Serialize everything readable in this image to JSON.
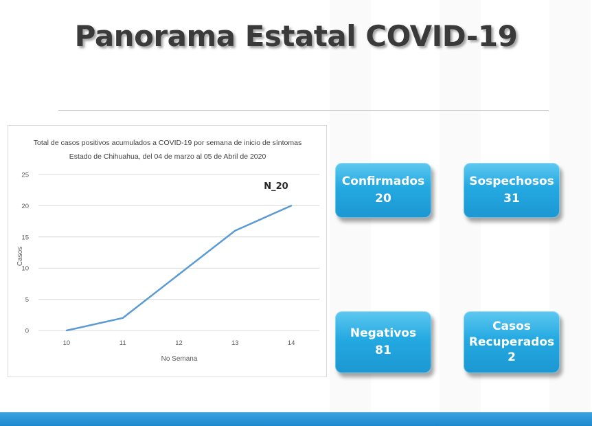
{
  "page": {
    "title": "Panorama Estatal COVID-19",
    "accent_color": "#1e9ad6",
    "line_color": "#5b9bd5"
  },
  "chart_data": {
    "type": "line",
    "title_line1": "Total de casos positivos acumulados a COVID-19 por semana de inicio de síntomas",
    "title_line2": "Estado de Chihuahua, del 04 de marzo al 05 de Abril de 2020",
    "xlabel": "No Semana",
    "ylabel": "Casos",
    "x": [
      10,
      11,
      12,
      13,
      14
    ],
    "series": [
      {
        "values": [
          0,
          2,
          9,
          16,
          20
        ]
      }
    ],
    "ylim": [
      0,
      25
    ],
    "yticks": [
      0,
      5,
      10,
      15,
      20,
      25
    ],
    "grid": "horizontal",
    "annotation": "N_20"
  },
  "cards": {
    "confirmados": {
      "label": "Confirmados",
      "value": "20"
    },
    "sospechosos": {
      "label": "Sospechosos",
      "value": "31"
    },
    "negativos": {
      "label": "Negativos",
      "value": "81"
    },
    "recuperados": {
      "label_line1": "Casos",
      "label_line2": "Recuperados",
      "value": "2"
    }
  }
}
